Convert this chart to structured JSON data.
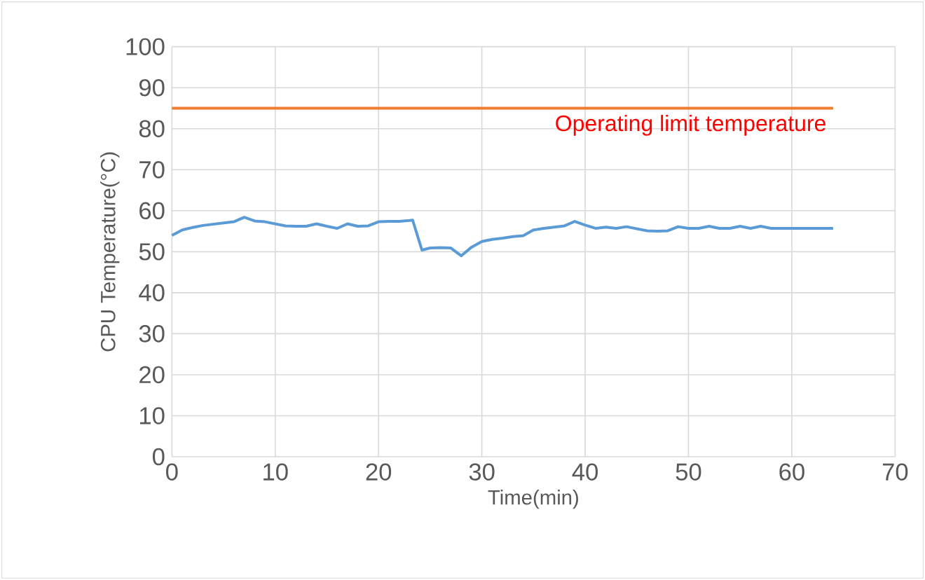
{
  "chart_data": {
    "type": "line",
    "xlabel": "Time(min)",
    "ylabel": "CPU Temperature(°C)",
    "x": [
      0,
      1,
      2,
      3,
      4,
      5,
      6,
      7,
      8,
      9,
      10,
      11,
      12,
      13,
      14,
      15,
      16,
      17,
      18,
      19,
      20,
      21,
      22,
      23,
      23.3,
      24.2,
      25,
      26,
      27,
      28,
      29,
      30,
      31,
      32,
      33,
      34,
      35,
      36,
      37,
      38,
      39,
      40,
      41,
      42,
      43,
      44,
      45,
      46,
      47,
      48,
      49,
      50,
      51,
      52,
      53,
      54,
      55,
      56,
      57,
      58,
      59,
      60,
      61,
      62,
      63,
      64
    ],
    "series": [
      {
        "color": "#5b9bd5",
        "values": [
          54.0,
          55.3,
          55.9,
          56.4,
          56.7,
          57.0,
          57.3,
          58.4,
          57.5,
          57.3,
          56.8,
          56.3,
          56.2,
          56.2,
          56.8,
          56.2,
          55.7,
          56.8,
          56.2,
          56.3,
          57.3,
          57.4,
          57.4,
          57.6,
          57.7,
          50.4,
          50.9,
          51.0,
          50.9,
          49.0,
          51.1,
          52.5,
          53.0,
          53.3,
          53.7,
          53.9,
          55.3,
          55.7,
          56.0,
          56.3,
          57.4,
          56.5,
          55.7,
          56.0,
          55.7,
          56.1,
          55.6,
          55.1,
          55.0,
          55.1,
          56.1,
          55.7,
          55.7,
          56.2,
          55.7,
          55.7,
          56.2,
          55.7,
          56.2,
          55.7,
          55.7,
          55.7,
          55.7,
          55.7,
          55.7,
          55.7
        ]
      }
    ],
    "xlim": [
      0,
      70
    ],
    "ylim": [
      0,
      100
    ],
    "xticks": [
      0,
      10,
      20,
      30,
      40,
      50,
      60,
      70
    ],
    "yticks": [
      0,
      10,
      20,
      30,
      40,
      50,
      60,
      70,
      80,
      90,
      100
    ],
    "grid": true,
    "marker": "none",
    "line_style": "solid",
    "ref_lines": [
      {
        "axis": "y",
        "value": 85,
        "label": "Operating limit temperature",
        "color": "#ed7d31"
      }
    ]
  }
}
